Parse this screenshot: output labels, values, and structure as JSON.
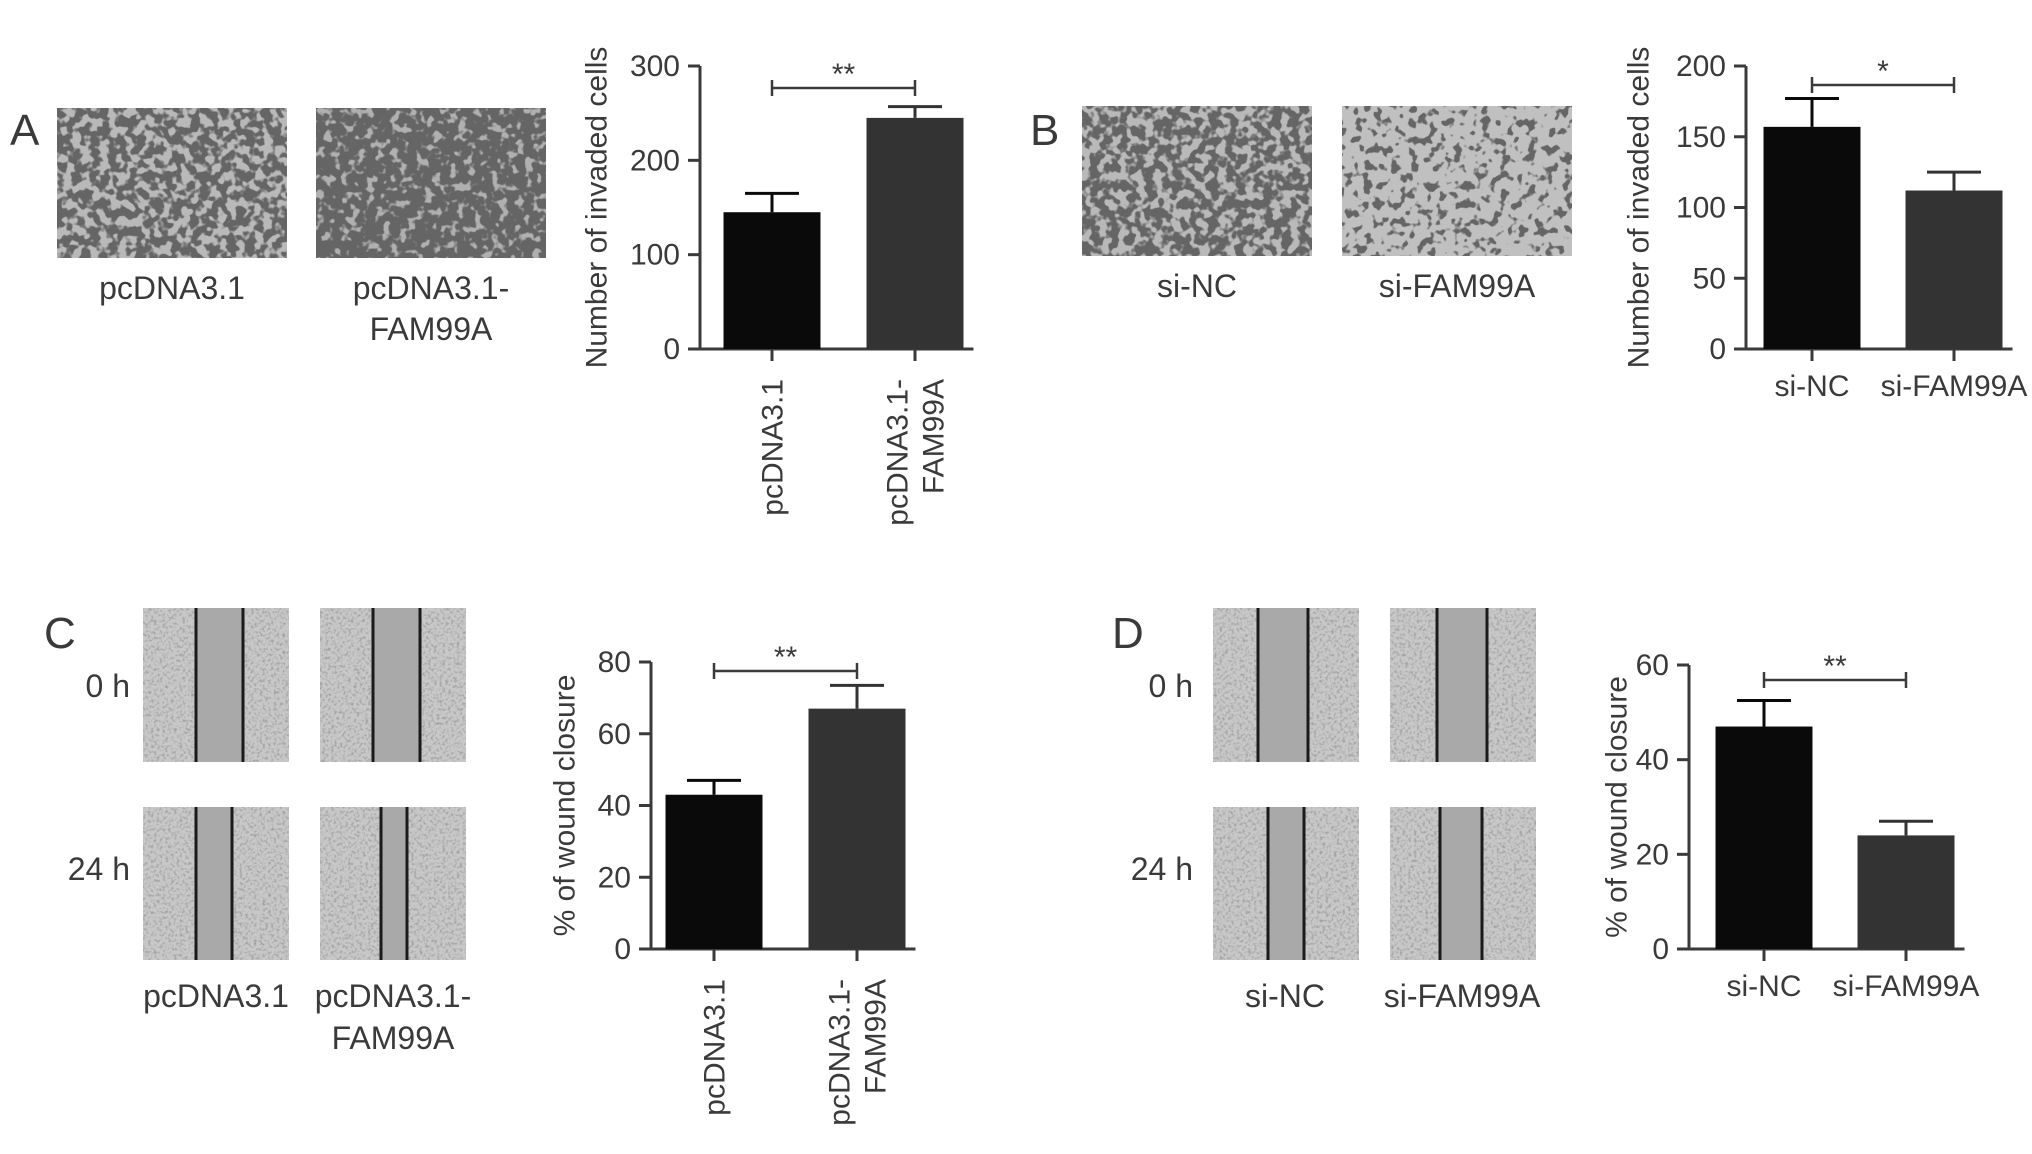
{
  "colors": {
    "bar_control": "#0a0a0a",
    "bar_treated": "#333333",
    "axis": "#3a3a3a",
    "micro_bg": "#b9b9b9",
    "wound_bg": "#c8c8c8",
    "wound_gap": "#a9a9a9",
    "wound_line": "#1a1a1a"
  },
  "panels": [
    {
      "letter": "A",
      "image_labels": [
        [
          "pcDNA3.1"
        ],
        [
          "pcDNA3.1-",
          "FAM99A"
        ]
      ]
    },
    {
      "letter": "B",
      "image_labels": [
        [
          "si-NC"
        ],
        [
          "si-FAM99A"
        ]
      ]
    },
    {
      "letter": "C",
      "row_labels": [
        "0 h",
        "24 h"
      ],
      "image_labels": [
        [
          "pcDNA3.1"
        ],
        [
          "pcDNA3.1-",
          "FAM99A"
        ]
      ]
    },
    {
      "letter": "D",
      "row_labels": [
        "0 h",
        "24 h"
      ],
      "image_labels": [
        [
          "si-NC"
        ],
        [
          "si-FAM99A"
        ]
      ]
    }
  ],
  "chart_data": [
    {
      "panel": "A",
      "type": "bar",
      "categories": [
        [
          "pcDNA3.1"
        ],
        [
          "pcDNA3.1-",
          "FAM99A"
        ]
      ],
      "values": [
        145,
        245
      ],
      "errors": [
        20,
        12
      ],
      "ylabel": "Number of invaded cells",
      "ylim": [
        0,
        300
      ],
      "yticks": [
        0,
        100,
        200,
        300
      ],
      "significance": {
        "label": "**",
        "between": [
          0,
          1
        ]
      },
      "x_tick_rotation": -90
    },
    {
      "panel": "B",
      "type": "bar",
      "categories": [
        [
          "si-NC"
        ],
        [
          "si-FAM99A"
        ]
      ],
      "values": [
        157,
        112
      ],
      "errors": [
        20,
        13
      ],
      "ylabel": "Number of invaded cells",
      "ylim": [
        0,
        200
      ],
      "yticks": [
        0,
        50,
        100,
        150,
        200
      ],
      "significance": {
        "label": "*",
        "between": [
          0,
          1
        ]
      },
      "x_tick_rotation": 0
    },
    {
      "panel": "C",
      "type": "bar",
      "categories": [
        [
          "pcDNA3.1"
        ],
        [
          "pcDNA3.1-",
          "FAM99A"
        ]
      ],
      "values": [
        43,
        67
      ],
      "errors": [
        4,
        6.5
      ],
      "ylabel": "% of wound closure",
      "ylim": [
        0,
        80
      ],
      "yticks": [
        0,
        20,
        40,
        60,
        80
      ],
      "significance": {
        "label": "**",
        "between": [
          0,
          1
        ]
      },
      "x_tick_rotation": -90
    },
    {
      "panel": "D",
      "type": "bar",
      "categories": [
        [
          "si-NC"
        ],
        [
          "si-FAM99A"
        ]
      ],
      "values": [
        47,
        24
      ],
      "errors": [
        5.5,
        3
      ],
      "ylabel": "% of wound closure",
      "ylim": [
        0,
        60
      ],
      "yticks": [
        0,
        20,
        40,
        60
      ],
      "significance": {
        "label": "**",
        "between": [
          0,
          1
        ]
      },
      "x_tick_rotation": 0
    }
  ]
}
